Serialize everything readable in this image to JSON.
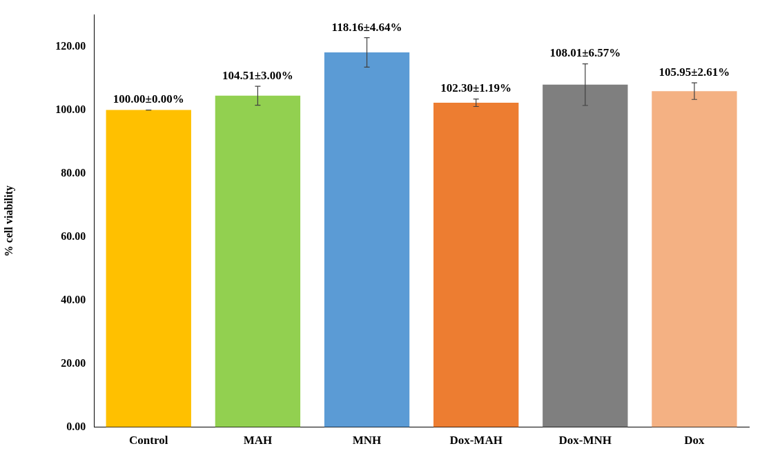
{
  "chart_data": {
    "type": "bar",
    "ylabel": "% cell viability",
    "categories": [
      "Control",
      "MAH",
      "MNH",
      "Dox-MAH",
      "Dox-MNH",
      "Dox"
    ],
    "values": [
      100.0,
      104.51,
      118.16,
      102.3,
      108.01,
      105.95
    ],
    "errors": [
      0.0,
      3.0,
      4.64,
      1.19,
      6.57,
      2.61
    ],
    "value_labels": [
      "100.00±0.00%",
      "104.51±3.00%",
      "118.16±4.64%",
      "102.30±1.19%",
      "108.01±6.57%",
      "105.95±2.61%"
    ],
    "colors": [
      "#ffc000",
      "#92d050",
      "#5b9bd5",
      "#ed7d31",
      "#7f7f7f",
      "#f4b183"
    ],
    "ylim": [
      0,
      130
    ],
    "yticks": [
      {
        "value": 0,
        "label": "0.00"
      },
      {
        "value": 20,
        "label": "20.00"
      },
      {
        "value": 40,
        "label": "40.00"
      },
      {
        "value": 60,
        "label": "60.00"
      },
      {
        "value": 80,
        "label": "80.00"
      },
      {
        "value": 100,
        "label": "100.00"
      },
      {
        "value": 120,
        "label": "120.00"
      }
    ]
  }
}
